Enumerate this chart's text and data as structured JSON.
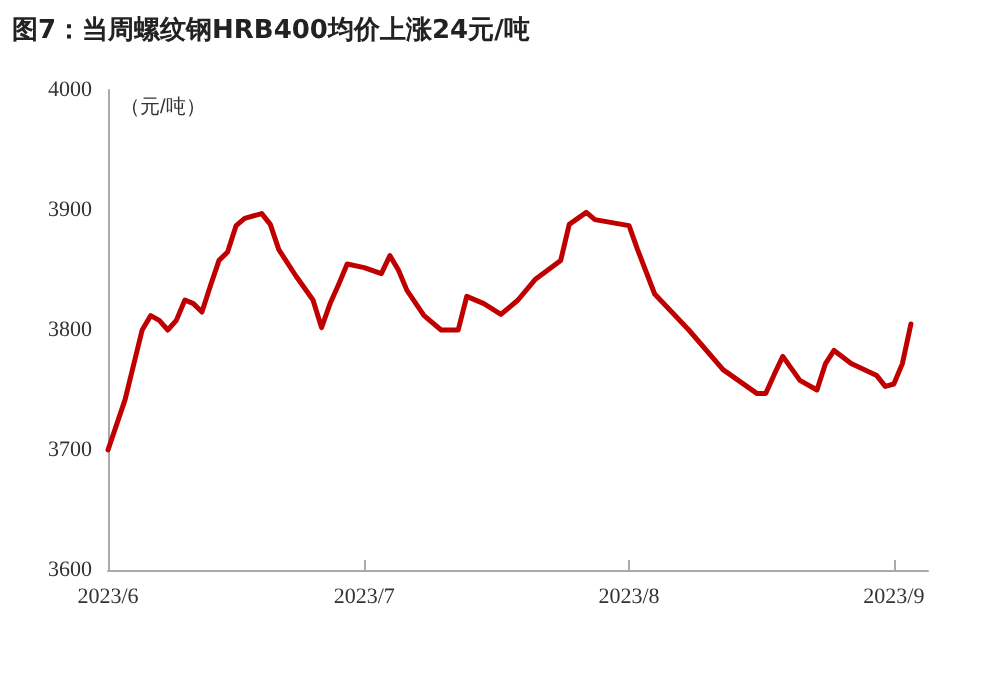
{
  "chart_data": {
    "type": "line",
    "title": "图7：当周螺纹钢HRB400均价上涨24元/吨",
    "ylabel": "（元/吨）",
    "x": [
      "2023-06-01",
      "2023-06-03",
      "2023-06-05",
      "2023-06-06",
      "2023-06-07",
      "2023-06-08",
      "2023-06-09",
      "2023-06-10",
      "2023-06-11",
      "2023-06-12",
      "2023-06-13",
      "2023-06-14",
      "2023-06-15",
      "2023-06-16",
      "2023-06-17",
      "2023-06-19",
      "2023-06-20",
      "2023-06-21",
      "2023-06-23",
      "2023-06-25",
      "2023-06-26",
      "2023-06-27",
      "2023-06-28",
      "2023-06-29",
      "2023-07-01",
      "2023-07-03",
      "2023-07-04",
      "2023-07-05",
      "2023-07-06",
      "2023-07-08",
      "2023-07-10",
      "2023-07-12",
      "2023-07-13",
      "2023-07-15",
      "2023-07-17",
      "2023-07-19",
      "2023-07-21",
      "2023-07-24",
      "2023-07-25",
      "2023-07-27",
      "2023-07-28",
      "2023-08-01",
      "2023-08-02",
      "2023-08-04",
      "2023-08-08",
      "2023-08-12",
      "2023-08-16",
      "2023-08-17",
      "2023-08-18",
      "2023-08-19",
      "2023-08-21",
      "2023-08-23",
      "2023-08-24",
      "2023-08-25",
      "2023-08-27",
      "2023-08-30",
      "2023-08-31",
      "2023-09-01",
      "2023-09-02",
      "2023-09-03"
    ],
    "series": [
      {
        "color": "#c00000",
        "values": [
          3700,
          3742,
          3800,
          3812,
          3808,
          3800,
          3808,
          3825,
          3822,
          3815,
          3837,
          3858,
          3865,
          3887,
          3893,
          3897,
          3888,
          3867,
          3845,
          3825,
          3802,
          3822,
          3838,
          3855,
          3852,
          3847,
          3862,
          3850,
          3833,
          3812,
          3800,
          3800,
          3828,
          3822,
          3813,
          3825,
          3842,
          3858,
          3888,
          3898,
          3892,
          3887,
          3867,
          3830,
          3800,
          3767,
          3747,
          3747,
          3763,
          3778,
          3758,
          3750,
          3772,
          3783,
          3772,
          3762,
          3753,
          3755,
          3772,
          3805
        ]
      }
    ],
    "xlim": [
      "2023-06-01",
      "2023-09-05"
    ],
    "xticks": [
      {
        "value": "2023-06-01",
        "label": "2023/6"
      },
      {
        "value": "2023-07-01",
        "label": "2023/7"
      },
      {
        "value": "2023-08-01",
        "label": "2023/8"
      },
      {
        "value": "2023-09-01",
        "label": "2023/9"
      }
    ],
    "ylim": [
      3600,
      4000
    ],
    "yticks": [
      3600,
      3700,
      3800,
      3900,
      4000
    ],
    "grid": false,
    "marker": "none",
    "line_style": "solid"
  }
}
